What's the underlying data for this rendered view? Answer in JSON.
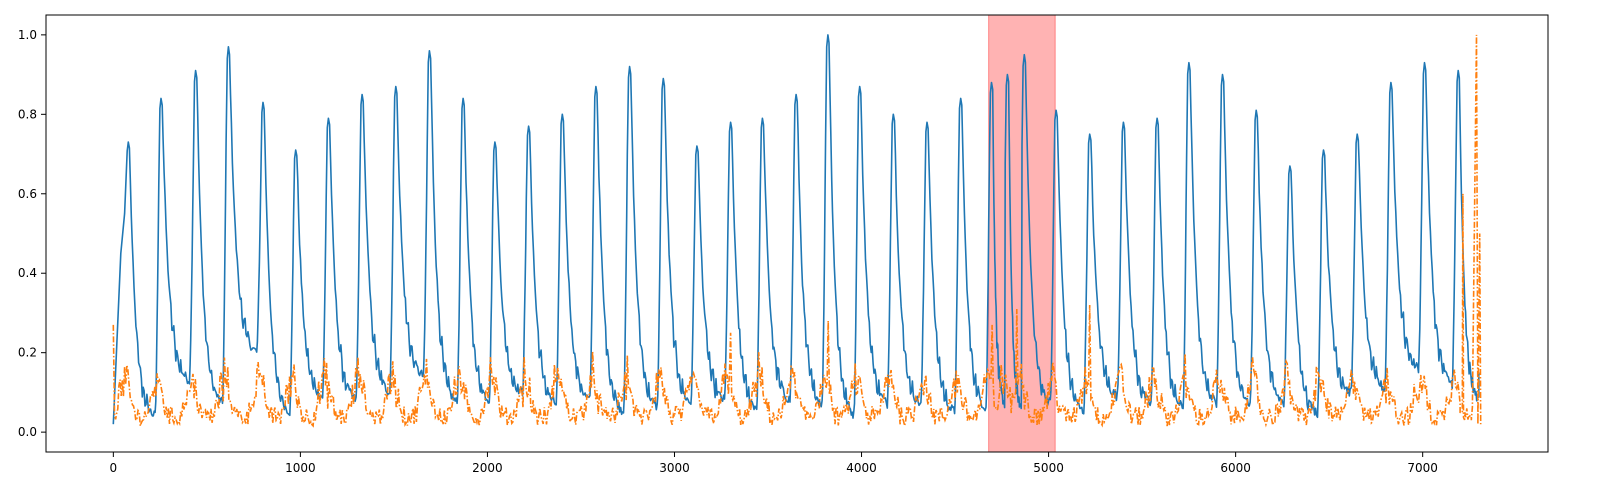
{
  "chart_data": {
    "type": "line",
    "title": "",
    "xlabel": "",
    "ylabel": "",
    "xlim": [
      -360,
      7670
    ],
    "ylim": [
      -0.05,
      1.05
    ],
    "x_ticks": [
      0,
      1000,
      2000,
      3000,
      4000,
      5000,
      6000,
      7000
    ],
    "y_ticks": [
      0.0,
      0.2,
      0.4,
      0.6,
      0.8,
      1.0
    ],
    "x_tick_labels": [
      "0",
      "1000",
      "2000",
      "3000",
      "4000",
      "5000",
      "6000",
      "7000"
    ],
    "y_tick_labels": [
      "0.0",
      "0.2",
      "0.4",
      "0.6",
      "0.8",
      "1.0"
    ],
    "grid": false,
    "legend": "none",
    "highlight_span": {
      "x_start": 4680,
      "x_end": 5035,
      "color": "#ff9999"
    },
    "series": [
      {
        "style": "solid",
        "color": "#1f77b4",
        "cycle_peak_x": [
          80,
          255,
          440,
          615,
          800,
          975,
          1150,
          1330,
          1510,
          1690,
          1870,
          2040,
          2220,
          2400,
          2580,
          2760,
          2940,
          3120,
          3300,
          3470,
          3650,
          3820,
          3990,
          4170,
          4350,
          4530,
          4695,
          4780,
          4870,
          5040,
          5220,
          5400,
          5580,
          5750,
          5930,
          6110,
          6290,
          6470,
          6650,
          6830,
          7010,
          7190
        ],
        "cycle_peak_y": [
          0.73,
          0.84,
          0.91,
          0.97,
          0.83,
          0.71,
          0.79,
          0.85,
          0.87,
          0.96,
          0.84,
          0.73,
          0.77,
          0.8,
          0.87,
          0.92,
          0.89,
          0.72,
          0.78,
          0.79,
          0.85,
          1.0,
          0.87,
          0.8,
          0.78,
          0.84,
          0.88,
          0.9,
          0.95,
          0.81,
          0.75,
          0.78,
          0.79,
          0.93,
          0.9,
          0.81,
          0.67,
          0.71,
          0.75,
          0.88,
          0.93,
          0.91
        ],
        "cycle_trough_y": [
          0.03,
          0.12,
          0.06,
          0.19,
          0.04,
          0.08,
          0.07,
          0.09,
          0.13,
          0.06,
          0.07,
          0.09,
          0.06,
          0.07,
          0.04,
          0.05,
          0.06,
          0.07,
          0.05,
          0.07,
          0.06,
          0.03,
          0.06,
          0.06,
          0.04,
          0.05,
          0.06,
          0.05,
          0.06,
          0.04,
          0.08,
          0.06,
          0.05,
          0.06,
          0.06,
          0.06,
          0.04,
          0.09,
          0.1,
          0.15,
          0.11,
          0.07
        ],
        "x_start": 0,
        "x_end": 7300,
        "end_y": 0.15
      },
      {
        "style": "dashdot",
        "color": "#ff7f0e",
        "x_start": 0,
        "x_end": 7310,
        "baseline": [
          0.0,
          0.2
        ],
        "spikes": [
          {
            "x": 0,
            "y": 0.27
          },
          {
            "x": 2360,
            "y": 0.17
          },
          {
            "x": 3300,
            "y": 0.25
          },
          {
            "x": 3820,
            "y": 0.28
          },
          {
            "x": 4700,
            "y": 0.27
          },
          {
            "x": 4830,
            "y": 0.31
          },
          {
            "x": 5220,
            "y": 0.32
          },
          {
            "x": 7220,
            "y": 0.6
          },
          {
            "x": 7290,
            "y": 1.0
          },
          {
            "x": 7310,
            "y": 0.5
          }
        ]
      }
    ]
  }
}
